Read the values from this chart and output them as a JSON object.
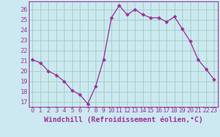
{
  "x": [
    0,
    1,
    2,
    3,
    4,
    5,
    6,
    7,
    8,
    9,
    10,
    11,
    12,
    13,
    14,
    15,
    16,
    17,
    18,
    19,
    20,
    21,
    22,
    23
  ],
  "y": [
    21.1,
    20.8,
    20.0,
    19.6,
    19.0,
    18.1,
    17.7,
    16.8,
    18.5,
    21.1,
    25.2,
    26.4,
    25.5,
    26.0,
    25.5,
    25.2,
    25.2,
    24.8,
    25.3,
    24.1,
    22.9,
    21.1,
    20.2,
    19.2
  ],
  "line_color": "#993399",
  "marker": "D",
  "marker_size": 2.5,
  "bg_color": "#cce8f0",
  "grid_color": "#99ccbb",
  "xlabel": "Windchill (Refroidissement éolien,°C)",
  "ylim": [
    16.5,
    26.8
  ],
  "yticks": [
    17,
    18,
    19,
    20,
    21,
    22,
    23,
    24,
    25,
    26
  ],
  "xticks": [
    0,
    1,
    2,
    3,
    4,
    5,
    6,
    7,
    8,
    9,
    10,
    11,
    12,
    13,
    14,
    15,
    16,
    17,
    18,
    19,
    20,
    21,
    22,
    23
  ],
  "xlabel_fontsize": 7.5,
  "tick_fontsize": 6.5,
  "line_width": 1.0
}
